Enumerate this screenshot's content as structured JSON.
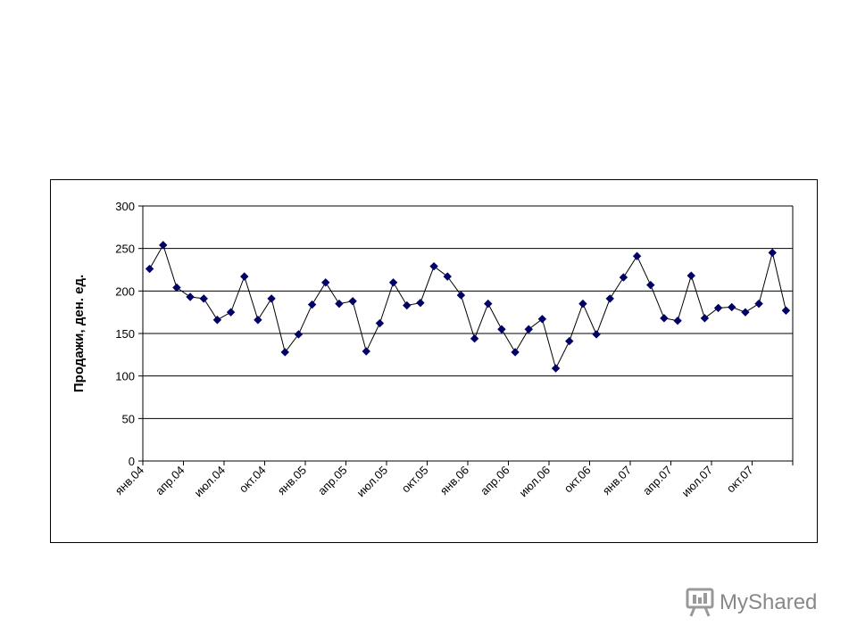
{
  "chart_data": {
    "type": "line",
    "ylabel": "Продажи, ден. ед.",
    "ylim": [
      0,
      300
    ],
    "yticks": [
      0,
      50,
      100,
      150,
      200,
      250,
      300
    ],
    "grid": true,
    "marker": "diamond",
    "line_color": "#000000",
    "marker_color": "#000066",
    "x_tick_labels": [
      "янв.04",
      "апр.04",
      "июл.04",
      "окт.04",
      "янв.05",
      "апр.05",
      "июл.05",
      "окт.05",
      "янв.06",
      "апр.06",
      "июл.06",
      "окт.06",
      "янв.07",
      "апр.07",
      "июл.07",
      "окт.07"
    ],
    "x": [
      "янв.04",
      "фев.04",
      "мар.04",
      "апр.04",
      "май.04",
      "июн.04",
      "июл.04",
      "авг.04",
      "сен.04",
      "окт.04",
      "ноя.04",
      "дек.04",
      "янв.05",
      "фев.05",
      "мар.05",
      "апр.05",
      "май.05",
      "июн.05",
      "июл.05",
      "авг.05",
      "сен.05",
      "окт.05",
      "ноя.05",
      "дек.05",
      "янв.06",
      "фев.06",
      "мар.06",
      "апр.06",
      "май.06",
      "июн.06",
      "июл.06",
      "авг.06",
      "сен.06",
      "окт.06",
      "ноя.06",
      "дек.06",
      "янв.07",
      "фев.07",
      "мар.07",
      "апр.07",
      "май.07",
      "июн.07",
      "июл.07",
      "авг.07",
      "сен.07",
      "окт.07",
      "ноя.07",
      "дек.07"
    ],
    "series": [
      {
        "values": [
          226,
          254,
          204,
          193,
          191,
          166,
          175,
          217,
          166,
          191,
          128,
          149,
          184,
          210,
          185,
          188,
          129,
          162,
          210,
          183,
          186,
          229,
          217,
          195,
          144,
          185,
          155,
          128,
          155,
          167,
          109,
          141,
          185,
          149,
          191,
          216,
          241,
          207,
          168,
          165,
          218,
          168,
          180,
          181,
          175,
          185,
          245,
          177
        ]
      }
    ]
  },
  "watermark": {
    "text": "MyShared"
  }
}
